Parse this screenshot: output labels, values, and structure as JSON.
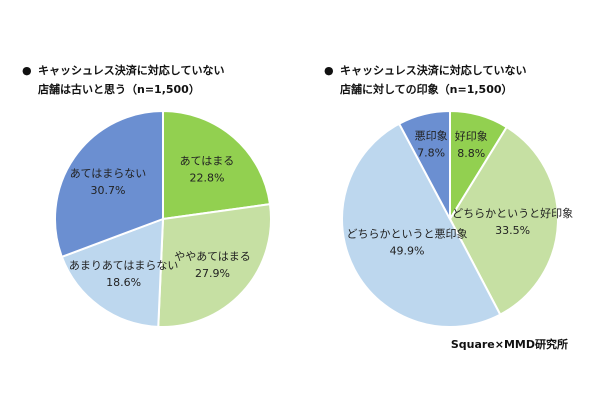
{
  "bullet": "●",
  "source": "Square×MMD研究所",
  "chart_data": [
    {
      "type": "pie",
      "title_line1": "キャッシュレス決済に対応していない",
      "title_line2": "店舗は古いと思う（n=1,500）",
      "slices": [
        {
          "label": "あてはまる",
          "value": 22.8,
          "value_text": "22.8%",
          "color": "#92d050"
        },
        {
          "label": "ややあてはまる",
          "value": 27.9,
          "value_text": "27.9%",
          "color": "#c6e0a3"
        },
        {
          "label": "あまりあてはまらない",
          "value": 18.6,
          "value_text": "18.6%",
          "color": "#bdd7ee"
        },
        {
          "label": "あてはまらない",
          "value": 30.7,
          "value_text": "30.7%",
          "color": "#6b8fd1"
        }
      ]
    },
    {
      "type": "pie",
      "title_line1": "キャッシュレス決済に対応していない",
      "title_line2": "店舗に対しての印象（n=1,500）",
      "slices": [
        {
          "label": "好印象",
          "value": 8.8,
          "value_text": "8.8%",
          "color": "#92d050"
        },
        {
          "label": "どちらかというと好印象",
          "value": 33.5,
          "value_text": "33.5%",
          "color": "#c6e0a3"
        },
        {
          "label": "どちらかというと悪印象",
          "value": 49.9,
          "value_text": "49.9%",
          "color": "#bdd7ee"
        },
        {
          "label": "悪印象",
          "value": 7.8,
          "value_text": "7.8%",
          "color": "#6b8fd1"
        }
      ]
    }
  ]
}
